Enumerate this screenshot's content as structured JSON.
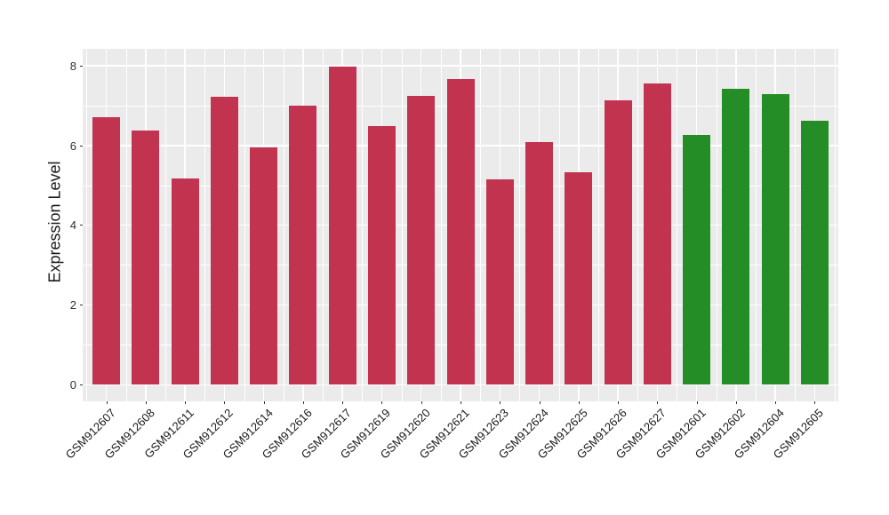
{
  "figure": {
    "background": "#FFFFFF"
  },
  "chart_data": {
    "type": "bar",
    "title": "",
    "xlabel": "",
    "ylabel": "Expression Level",
    "ylim": [
      0,
      8.4
    ],
    "yticks_major": [
      0,
      2,
      4,
      6,
      8
    ],
    "yticks_minor": [
      1,
      3,
      5,
      7
    ],
    "grid": "white major and minor gridlines on gray panel",
    "legend_position": "none",
    "panel_bg": "#EBEBEB",
    "grid_color": "#FFFFFF",
    "axis_text_color": "#303030",
    "tick_color": "#333333",
    "bar_color_group1": "#C23350",
    "bar_color_group2": "#258D25",
    "categories": [
      "GSM912607",
      "GSM912608",
      "GSM912611",
      "GSM912612",
      "GSM912614",
      "GSM912616",
      "GSM912617",
      "GSM912619",
      "GSM912620",
      "GSM912621",
      "GSM912623",
      "GSM912624",
      "GSM912625",
      "GSM912626",
      "GSM912627",
      "GSM912601",
      "GSM912602",
      "GSM912604",
      "GSM912605"
    ],
    "values": [
      6.71,
      6.37,
      5.16,
      7.21,
      5.95,
      7.0,
      7.97,
      6.49,
      7.24,
      7.66,
      5.14,
      6.09,
      5.33,
      7.13,
      7.55,
      6.25,
      7.42,
      7.29,
      6.62
    ],
    "colors": [
      "#C23350",
      "#C23350",
      "#C23350",
      "#C23350",
      "#C23350",
      "#C23350",
      "#C23350",
      "#C23350",
      "#C23350",
      "#C23350",
      "#C23350",
      "#C23350",
      "#C23350",
      "#C23350",
      "#C23350",
      "#258D25",
      "#258D25",
      "#258D25",
      "#258D25"
    ]
  }
}
